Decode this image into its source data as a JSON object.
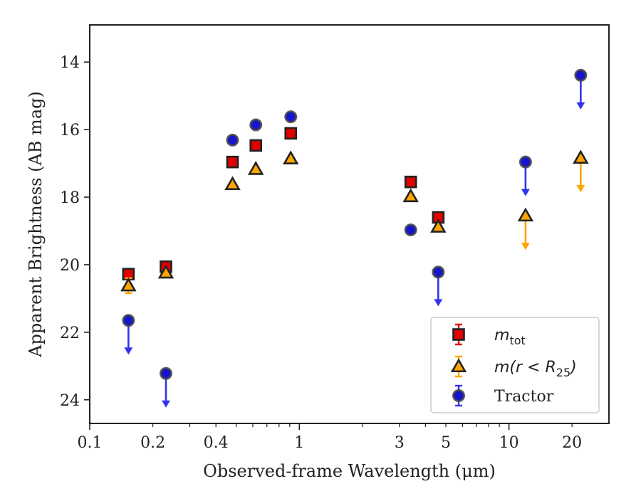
{
  "chart_data": {
    "type": "scatter",
    "title": "",
    "xlabel": "Observed-frame Wavelength (μm)",
    "ylabel": "Apparent Brightness (AB mag)",
    "xscale": "log",
    "xlim": [
      0.1,
      30
    ],
    "ylim": [
      24.7,
      12.9
    ],
    "y_inverted": true,
    "xticks": [
      {
        "value": 0.1,
        "label": "0.1"
      },
      {
        "value": 0.2,
        "label": "0.2"
      },
      {
        "value": 0.4,
        "label": "0.4"
      },
      {
        "value": 1,
        "label": "1"
      },
      {
        "value": 3,
        "label": "3"
      },
      {
        "value": 5,
        "label": "5"
      },
      {
        "value": 10,
        "label": "10"
      },
      {
        "value": 20,
        "label": "20"
      }
    ],
    "yticks": [
      {
        "value": 14,
        "label": "14"
      },
      {
        "value": 16,
        "label": "16"
      },
      {
        "value": 18,
        "label": "18"
      },
      {
        "value": 20,
        "label": "20"
      },
      {
        "value": 22,
        "label": "22"
      },
      {
        "value": 24,
        "label": "24"
      }
    ],
    "grid": false,
    "legend_position": "lower-right",
    "series": [
      {
        "name": "m_tot",
        "label_main": "m",
        "label_sub": "tot",
        "marker": "square",
        "color": "#e00000",
        "edge_color": "#222222",
        "points": [
          {
            "x": 0.153,
            "y": 20.28,
            "yerr": 0.12
          },
          {
            "x": 0.231,
            "y": 20.06,
            "yerr": 0.08
          },
          {
            "x": 0.48,
            "y": 16.96,
            "yerr": 0
          },
          {
            "x": 0.62,
            "y": 16.47,
            "yerr": 0
          },
          {
            "x": 0.91,
            "y": 16.11,
            "yerr": 0
          },
          {
            "x": 3.4,
            "y": 17.55,
            "yerr": 0
          },
          {
            "x": 4.6,
            "y": 18.6,
            "yerr": 0.05
          }
        ]
      },
      {
        "name": "m(r < R25)",
        "label_main": "m(r < R",
        "label_sub": "25",
        "label_end": ")",
        "marker": "triangle",
        "color": "#ffa500",
        "edge_color": "#222222",
        "points": [
          {
            "x": 0.153,
            "y": 20.62,
            "yerr": 0.22
          },
          {
            "x": 0.231,
            "y": 20.24,
            "yerr": 0.05
          },
          {
            "x": 0.48,
            "y": 17.62,
            "yerr": 0
          },
          {
            "x": 0.62,
            "y": 17.17,
            "yerr": 0
          },
          {
            "x": 0.91,
            "y": 16.86,
            "yerr": 0
          },
          {
            "x": 3.4,
            "y": 17.98,
            "yerr": 0
          },
          {
            "x": 4.6,
            "y": 18.88,
            "yerr": 0
          },
          {
            "x": 12.0,
            "y": 18.55,
            "yerr": 0,
            "upper_limit": true
          },
          {
            "x": 22.0,
            "y": 16.84,
            "yerr": 0,
            "upper_limit": true
          }
        ]
      },
      {
        "name": "Tractor",
        "label_main": "Tractor",
        "marker": "circle",
        "color": "#1515d0",
        "edge_color": "#444444",
        "arrow_color": "#3333ee",
        "points": [
          {
            "x": 0.153,
            "y": 21.65,
            "yerr": 0,
            "upper_limit": true
          },
          {
            "x": 0.231,
            "y": 23.22,
            "yerr": 0,
            "upper_limit": true
          },
          {
            "x": 0.48,
            "y": 16.31,
            "yerr": 0
          },
          {
            "x": 0.62,
            "y": 15.86,
            "yerr": 0
          },
          {
            "x": 0.91,
            "y": 15.62,
            "yerr": 0
          },
          {
            "x": 3.4,
            "y": 18.97,
            "yerr": 0
          },
          {
            "x": 4.6,
            "y": 20.22,
            "yerr": 0,
            "upper_limit": true
          },
          {
            "x": 12.0,
            "y": 16.96,
            "yerr": 0,
            "upper_limit": true
          },
          {
            "x": 22.0,
            "y": 14.39,
            "yerr": 0,
            "upper_limit": true
          }
        ]
      }
    ]
  }
}
